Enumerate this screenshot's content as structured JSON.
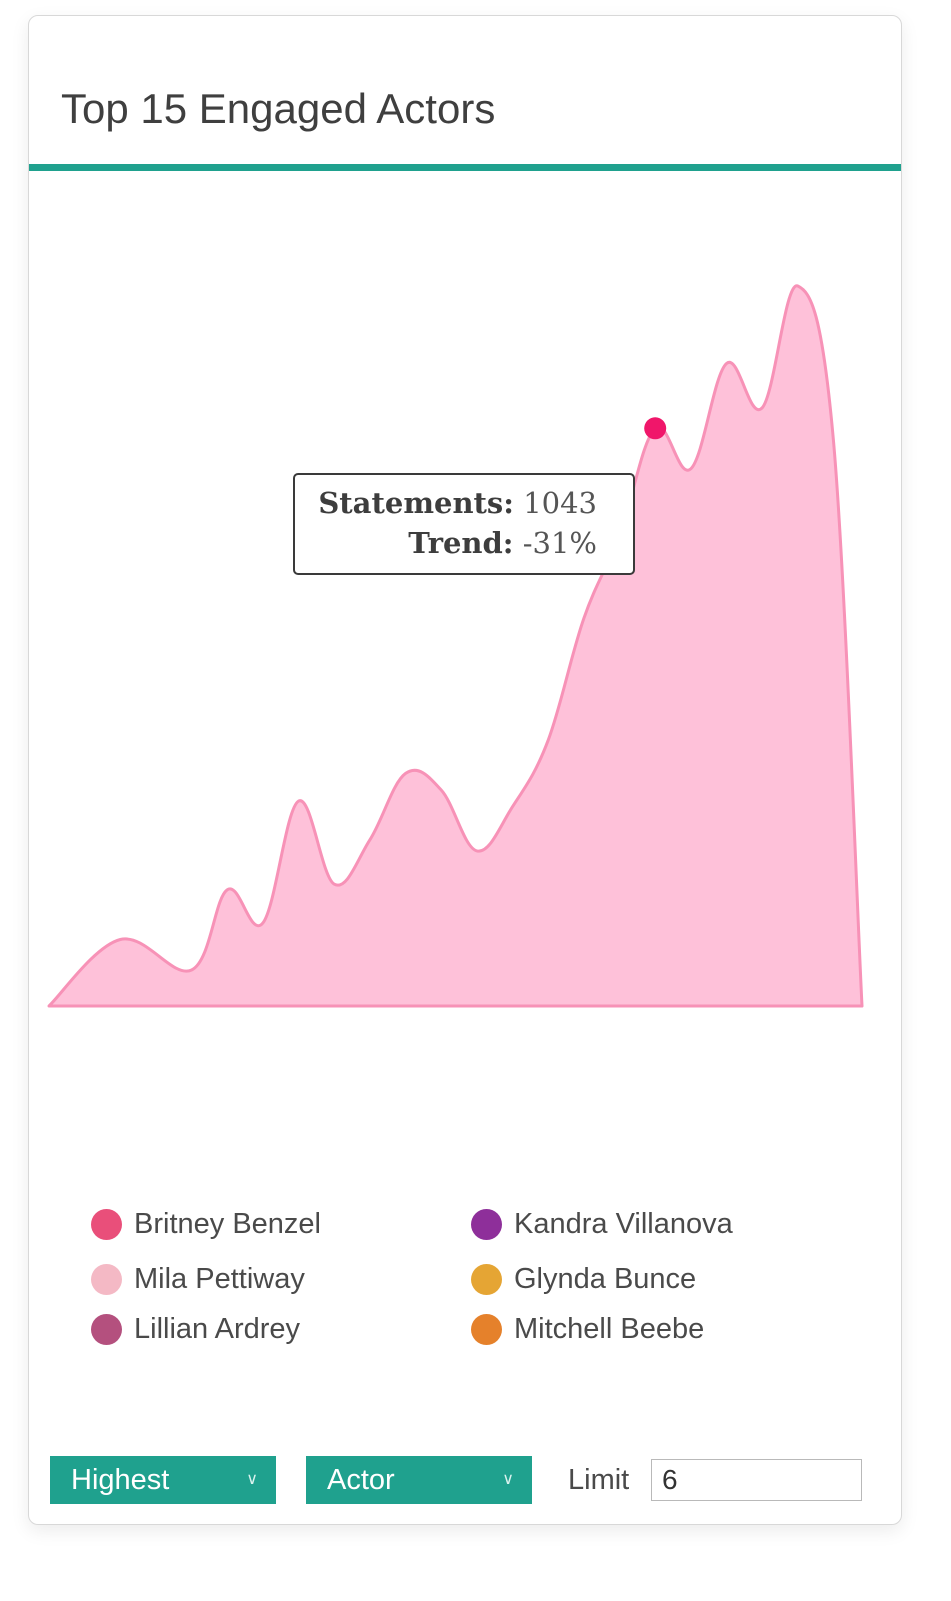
{
  "card": {
    "title": "Top 15 Engaged Actors"
  },
  "tooltip": {
    "statements_label": "Statements:",
    "statements_value": "1043",
    "trend_label": "Trend:",
    "trend_value": "-31%"
  },
  "legend": [
    {
      "label": "Britney Benzel",
      "color": "#e94f7a"
    },
    {
      "label": "Kandra Villanova",
      "color": "#8e2f9a"
    },
    {
      "label": "Mila Pettiway",
      "color": "#f4b9c5"
    },
    {
      "label": "Glynda Bunce",
      "color": "#e5a534"
    },
    {
      "label": "Lillian Ardrey",
      "color": "#b4507e"
    },
    {
      "label": "Mitchell Beebe",
      "color": "#e5812b"
    }
  ],
  "controls": {
    "sort_select": "Highest",
    "group_select": "Actor",
    "limit_label": "Limit",
    "limit_value": "6"
  },
  "colors": {
    "accent": "#1fa18e",
    "area_fill": "#fec1d9",
    "area_stroke": "#f792b7",
    "highlight_point": "#f0166a"
  },
  "chart_data": {
    "type": "area",
    "title": "Top 15 Engaged Actors",
    "xlabel": "",
    "ylabel": "",
    "grid": false,
    "axes_visible": false,
    "legend_position": "bottom",
    "highlight": {
      "x": 17,
      "y": 1043,
      "trend": "-31%"
    },
    "x": [
      0,
      2,
      4,
      5,
      6,
      7,
      8,
      9,
      10,
      11,
      12,
      13,
      14,
      15,
      16,
      17,
      18,
      19,
      20,
      21,
      22,
      22.8
    ],
    "y": [
      0,
      120,
      65,
      210,
      150,
      370,
      220,
      300,
      420,
      390,
      280,
      360,
      480,
      700,
      850,
      1043,
      970,
      1160,
      1080,
      1300,
      1020,
      0
    ],
    "ylim": [
      0,
      1300
    ]
  }
}
